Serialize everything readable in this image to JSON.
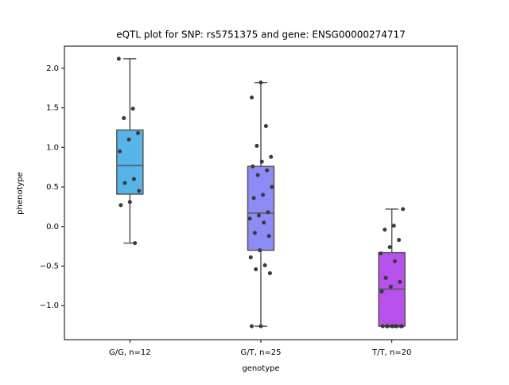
{
  "chart_data": {
    "type": "box",
    "title": "eQTL plot for SNP: rs5751375 and gene: ENSG00000274717",
    "x_label": "genotype",
    "y_label": "phenotype",
    "categories": [
      "G/G, n=12",
      "G/T, n=25",
      "T/T, n=20"
    ],
    "colors": [
      "#56b4e9",
      "#8d8bf5",
      "#b651ec"
    ],
    "boxes": [
      {
        "min": -0.21,
        "q1": 0.41,
        "median": 0.77,
        "q3": 1.22,
        "max": 2.12
      },
      {
        "min": -1.26,
        "q1": -0.3,
        "median": 0.17,
        "q3": 0.76,
        "max": 1.82
      },
      {
        "min": -1.26,
        "q1": -1.26,
        "median": -0.79,
        "q3": -0.33,
        "max": 0.22
      }
    ],
    "points": [
      [
        2.12,
        1.49,
        1.37,
        1.18,
        1.1,
        0.95,
        0.6,
        0.55,
        0.45,
        0.31,
        0.27,
        -0.21
      ],
      [
        1.82,
        1.63,
        1.27,
        1.02,
        0.88,
        0.82,
        0.76,
        0.71,
        0.65,
        0.5,
        0.4,
        0.36,
        0.18,
        0.14,
        0.1,
        0.05,
        -0.08,
        -0.12,
        -0.3,
        -0.39,
        -0.49,
        -0.54,
        -0.59,
        -1.26,
        -1.26
      ],
      [
        0.22,
        0.01,
        -0.04,
        -0.17,
        -0.26,
        -0.34,
        -0.44,
        -0.65,
        -0.7,
        -0.76,
        -0.82,
        -1.26,
        -1.26,
        -1.26,
        -1.26,
        -1.26,
        -1.26,
        -1.26,
        -1.26,
        -1.26
      ]
    ],
    "ylim": [
      -1.43,
      2.28
    ],
    "yticks": [
      {
        "value": -1,
        "label": "−1.0"
      },
      {
        "value": -0.5,
        "label": "−0.5"
      },
      {
        "value": 0,
        "label": "0.0"
      },
      {
        "value": 0.5,
        "label": "0.5"
      },
      {
        "value": 1,
        "label": "1.0"
      },
      {
        "value": 1.5,
        "label": "1.5"
      },
      {
        "value": 2,
        "label": "2.0"
      }
    ]
  }
}
